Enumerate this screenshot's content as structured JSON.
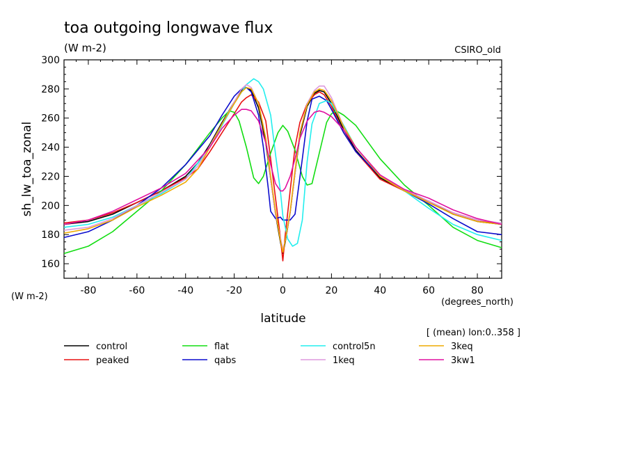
{
  "chart_data": {
    "type": "line",
    "title": "toa outgoing longwave flux",
    "units": "(W m-2)",
    "model": "CSIRO_old",
    "ylabel": "sh_lw_toa_zonal",
    "ylabel_units": "(W m-2)",
    "xlabel": "latitude",
    "xlabel_units": "(degrees_north)",
    "note": "[ (mean) lon:0..358 ]",
    "xlim": [
      -90,
      90
    ],
    "ylim": [
      150,
      300
    ],
    "xticks": [
      "-80",
      "-60",
      "-40",
      "-20",
      "0",
      "20",
      "40",
      "60",
      "80"
    ],
    "yticks": [
      "160",
      "180",
      "200",
      "220",
      "240",
      "260",
      "280",
      "300"
    ],
    "grid": false,
    "legend_position": "bottom",
    "series": [
      {
        "name": "control",
        "color": "#000000",
        "x": [
          -90,
          -80,
          -70,
          -60,
          -50,
          -40,
          -35,
          -30,
          -25,
          -20,
          -17,
          -15,
          -13,
          -10,
          -7,
          -5,
          -3,
          -1,
          0,
          1,
          3,
          5,
          7,
          10,
          13,
          15,
          17,
          20,
          25,
          30,
          40,
          50,
          60,
          70,
          80,
          90
        ],
        "y": [
          187,
          189,
          194,
          202,
          210,
          220,
          229,
          242,
          257,
          271,
          279,
          281,
          279,
          267,
          243,
          218,
          194,
          175,
          167,
          175,
          195,
          222,
          248,
          268,
          277,
          279,
          278,
          270,
          252,
          238,
          219,
          210,
          203,
          194,
          189,
          187
        ]
      },
      {
        "name": "peaked",
        "color": "#e81010",
        "x": [
          -90,
          -80,
          -70,
          -60,
          -50,
          -40,
          -35,
          -30,
          -25,
          -20,
          -17,
          -15,
          -13,
          -10,
          -7,
          -5,
          -3,
          -1,
          0,
          1,
          3,
          5,
          7,
          10,
          13,
          15,
          17,
          20,
          25,
          30,
          40,
          50,
          60,
          70,
          80,
          90
        ],
        "y": [
          188,
          190,
          195,
          202,
          210,
          219,
          225,
          237,
          250,
          263,
          271,
          274,
          276,
          271,
          258,
          232,
          205,
          178,
          162,
          180,
          210,
          240,
          257,
          270,
          276,
          278,
          276,
          268,
          250,
          237,
          218,
          210,
          203,
          195,
          190,
          187
        ]
      },
      {
        "name": "flat",
        "color": "#11dd11",
        "x": [
          -90,
          -80,
          -70,
          -60,
          -50,
          -40,
          -30,
          -25,
          -22,
          -20,
          -18,
          -15,
          -12,
          -10,
          -8,
          -5,
          -2,
          0,
          2,
          5,
          8,
          10,
          12,
          15,
          18,
          20,
          22,
          25,
          30,
          40,
          50,
          60,
          70,
          80,
          90
        ],
        "y": [
          167,
          172,
          182,
          196,
          210,
          228,
          250,
          260,
          265,
          264,
          258,
          240,
          219,
          215,
          220,
          236,
          250,
          255,
          251,
          238,
          220,
          214,
          215,
          236,
          257,
          263,
          265,
          262,
          255,
          232,
          214,
          200,
          185,
          176,
          171
        ]
      },
      {
        "name": "qabs",
        "color": "#0a0acd",
        "x": [
          -90,
          -80,
          -70,
          -60,
          -50,
          -40,
          -30,
          -25,
          -20,
          -17,
          -15,
          -13,
          -10,
          -8,
          -6,
          -5,
          -3,
          -1,
          0,
          1,
          3,
          5,
          8,
          10,
          12,
          15,
          18,
          20,
          25,
          30,
          40,
          50,
          60,
          70,
          80,
          90
        ],
        "y": [
          178,
          182,
          190,
          200,
          212,
          228,
          248,
          262,
          275,
          280,
          281,
          278,
          262,
          240,
          212,
          196,
          191,
          192,
          190,
          190,
          190,
          194,
          232,
          258,
          273,
          275,
          272,
          266,
          250,
          237,
          220,
          210,
          201,
          191,
          182,
          180
        ]
      },
      {
        "name": "control5n",
        "color": "#22eeee",
        "x": [
          -90,
          -80,
          -70,
          -60,
          -50,
          -40,
          -30,
          -25,
          -20,
          -15,
          -12,
          -10,
          -8,
          -5,
          -3,
          -1,
          0,
          2,
          4,
          6,
          8,
          10,
          12,
          15,
          18,
          20,
          25,
          30,
          40,
          50,
          60,
          70,
          80,
          90
        ],
        "y": [
          185,
          187,
          192,
          200,
          208,
          218,
          240,
          255,
          270,
          283,
          287,
          285,
          280,
          262,
          235,
          210,
          193,
          177,
          172,
          174,
          190,
          230,
          256,
          270,
          272,
          270,
          255,
          240,
          220,
          210,
          198,
          187,
          180,
          176
        ]
      },
      {
        "name": "1keq",
        "color": "#dd99dd",
        "x": [
          -90,
          -80,
          -70,
          -60,
          -50,
          -40,
          -35,
          -30,
          -25,
          -20,
          -17,
          -15,
          -13,
          -10,
          -7,
          -5,
          -3,
          -1,
          0,
          1,
          3,
          5,
          7,
          10,
          13,
          15,
          17,
          20,
          25,
          30,
          40,
          50,
          60,
          70,
          80,
          90
        ],
        "y": [
          183,
          185,
          191,
          200,
          209,
          218,
          227,
          241,
          256,
          271,
          280,
          283,
          281,
          270,
          246,
          218,
          194,
          178,
          170,
          176,
          195,
          222,
          250,
          270,
          279,
          282,
          282,
          274,
          254,
          240,
          220,
          211,
          203,
          195,
          190,
          188
        ]
      },
      {
        "name": "3keq",
        "color": "#eeaa00",
        "x": [
          -90,
          -80,
          -70,
          -60,
          -50,
          -40,
          -35,
          -30,
          -25,
          -20,
          -17,
          -15,
          -13,
          -10,
          -7,
          -5,
          -3,
          -1,
          0,
          1,
          3,
          5,
          7,
          10,
          13,
          15,
          17,
          20,
          25,
          30,
          40,
          50,
          60,
          70,
          80,
          90
        ],
        "y": [
          181,
          184,
          190,
          199,
          207,
          216,
          225,
          240,
          256,
          270,
          278,
          281,
          280,
          270,
          246,
          220,
          196,
          176,
          168,
          176,
          196,
          224,
          250,
          269,
          278,
          280,
          279,
          272,
          254,
          240,
          220,
          210,
          202,
          194,
          189,
          187
        ]
      },
      {
        "name": "3kw1",
        "color": "#e010a0",
        "x": [
          -90,
          -80,
          -70,
          -60,
          -50,
          -40,
          -30,
          -25,
          -20,
          -17,
          -15,
          -13,
          -10,
          -7,
          -5,
          -3,
          -1,
          0,
          1,
          3,
          5,
          7,
          10,
          13,
          15,
          17,
          20,
          25,
          30,
          40,
          50,
          60,
          70,
          80,
          90
        ],
        "y": [
          187,
          190,
          196,
          204,
          212,
          222,
          240,
          253,
          262,
          266,
          266,
          265,
          258,
          243,
          228,
          215,
          210,
          210,
          212,
          220,
          232,
          246,
          258,
          264,
          265,
          264,
          261,
          252,
          240,
          221,
          211,
          205,
          197,
          191,
          187
        ]
      }
    ]
  }
}
